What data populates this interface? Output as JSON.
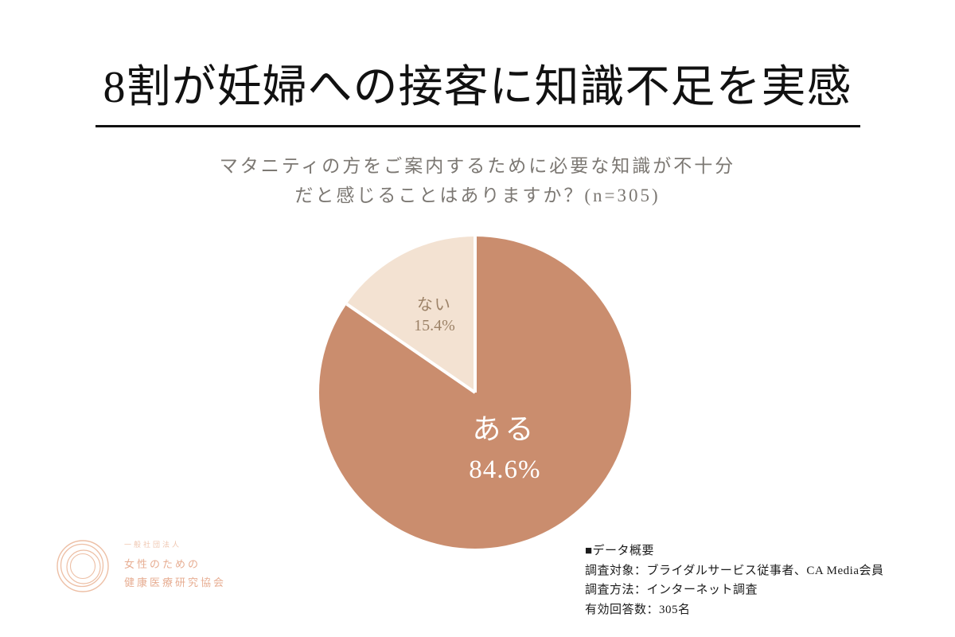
{
  "header": {
    "title": "8割が妊婦への接客に知識不足を実感",
    "question_line1": "マタニティの方をご案内するために必要な知識が不十分",
    "question_line2": "だと感じることはありますか？(n=305)"
  },
  "chart_data": {
    "type": "pie",
    "title": "マタニティの方をご案内するために必要な知識が不十分だと感じることはありますか？(n=305)",
    "sample_size": 305,
    "start_angle_deg": 0,
    "direction": "clockwise",
    "legend_position": "none",
    "slices": [
      {
        "label": "ある",
        "value": 84.6,
        "pct_text": "84.6%",
        "color": "#ca8d6e",
        "text_color": "#ffffff",
        "label_radius": 0.41
      },
      {
        "label": "ない",
        "value": 15.4,
        "pct_text": "15.4%",
        "color": "#f3e2d2",
        "text_color": "#9c8267",
        "label_radius": 0.56
      }
    ]
  },
  "footer": {
    "heading": "■データ概要",
    "lines": [
      "調査対象：ブライダルサービス従事者、CA Media会員",
      "調査方法：インターネット調査",
      "有効回答数：305名"
    ]
  },
  "logo": {
    "org_type": "一般社団法人",
    "name_line1": "女性のための",
    "name_line2": "健康医療研究協会",
    "color": "#e7ad92"
  }
}
